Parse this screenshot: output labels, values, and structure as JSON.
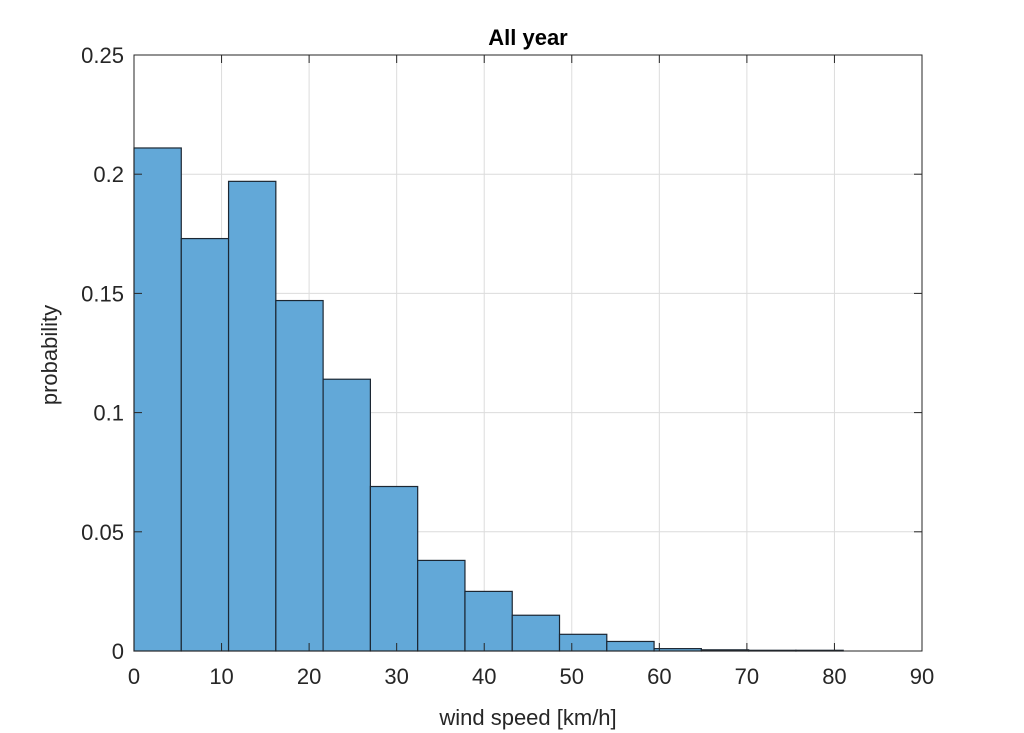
{
  "chart_data": {
    "type": "bar",
    "title": "All year",
    "xlabel": "wind speed [km/h]",
    "ylabel": "probability",
    "xlim": [
      0,
      90
    ],
    "ylim": [
      0,
      0.25
    ],
    "grid": true,
    "bar_color": "#62a8d8",
    "x_ticks": [
      "0",
      "10",
      "20",
      "30",
      "40",
      "50",
      "60",
      "70",
      "80",
      "90"
    ],
    "y_ticks": [
      "0",
      "0.05",
      "0.1",
      "0.15",
      "0.2",
      "0.25"
    ],
    "bins": [
      {
        "x0": 0,
        "x1": 5.4,
        "value": 0.211
      },
      {
        "x0": 5.4,
        "x1": 10.8,
        "value": 0.173
      },
      {
        "x0": 10.8,
        "x1": 16.2,
        "value": 0.197
      },
      {
        "x0": 16.2,
        "x1": 21.6,
        "value": 0.147
      },
      {
        "x0": 21.6,
        "x1": 27.0,
        "value": 0.114
      },
      {
        "x0": 27.0,
        "x1": 32.4,
        "value": 0.069
      },
      {
        "x0": 32.4,
        "x1": 37.8,
        "value": 0.038
      },
      {
        "x0": 37.8,
        "x1": 43.2,
        "value": 0.025
      },
      {
        "x0": 43.2,
        "x1": 48.6,
        "value": 0.015
      },
      {
        "x0": 48.6,
        "x1": 54.0,
        "value": 0.007
      },
      {
        "x0": 54.0,
        "x1": 59.4,
        "value": 0.004
      },
      {
        "x0": 59.4,
        "x1": 64.8,
        "value": 0.001
      },
      {
        "x0": 64.8,
        "x1": 70.2,
        "value": 0.0005
      },
      {
        "x0": 70.2,
        "x1": 75.6,
        "value": 0.0003
      },
      {
        "x0": 75.6,
        "x1": 81.0,
        "value": 0.0003
      }
    ]
  }
}
